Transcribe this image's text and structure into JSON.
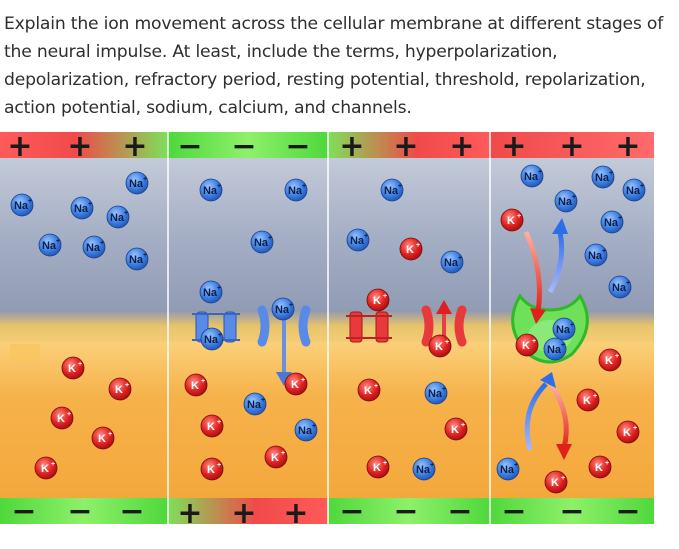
{
  "question": "Explain the ion movement across the cellular membrane at different stages of the neural impulse.  At least, include the terms, hyperpolarization, depolarization, refractory period, resting potential, threshold, repolarization, action potential, sodium, calcium, and channels.",
  "diagram": {
    "ion_labels": {
      "sodium": "Na",
      "potassium": "K",
      "charge_sup": "+"
    },
    "charge_symbols": {
      "positive": "+",
      "negative": "−"
    },
    "colors": {
      "top_band_red": "#f04a4a",
      "top_band_green": "#6de04a",
      "extracellular": "#a9b3c7",
      "intracellular": "#f6b24a",
      "membrane": "#e8b84e",
      "sodium_ion": "#3b7de0",
      "potassium_ion": "#e02020",
      "pump": "#39d83a"
    },
    "panels": [
      {
        "stage": 1,
        "top_charges": [
          "+",
          "+",
          "+"
        ],
        "bottom_charges": [
          "−",
          "−",
          "−"
        ]
      },
      {
        "stage": 2,
        "top_charges": [
          "−",
          "−",
          "−"
        ],
        "bottom_charges": [
          "+",
          "+",
          "+"
        ]
      },
      {
        "stage": 3,
        "top_charges": [
          "+",
          "+",
          "+"
        ],
        "bottom_charges": [
          "−",
          "−",
          "−"
        ]
      },
      {
        "stage": 4,
        "top_charges": [
          "+",
          "+",
          "+"
        ],
        "bottom_charges": [
          "−",
          "−",
          "−"
        ]
      }
    ]
  }
}
